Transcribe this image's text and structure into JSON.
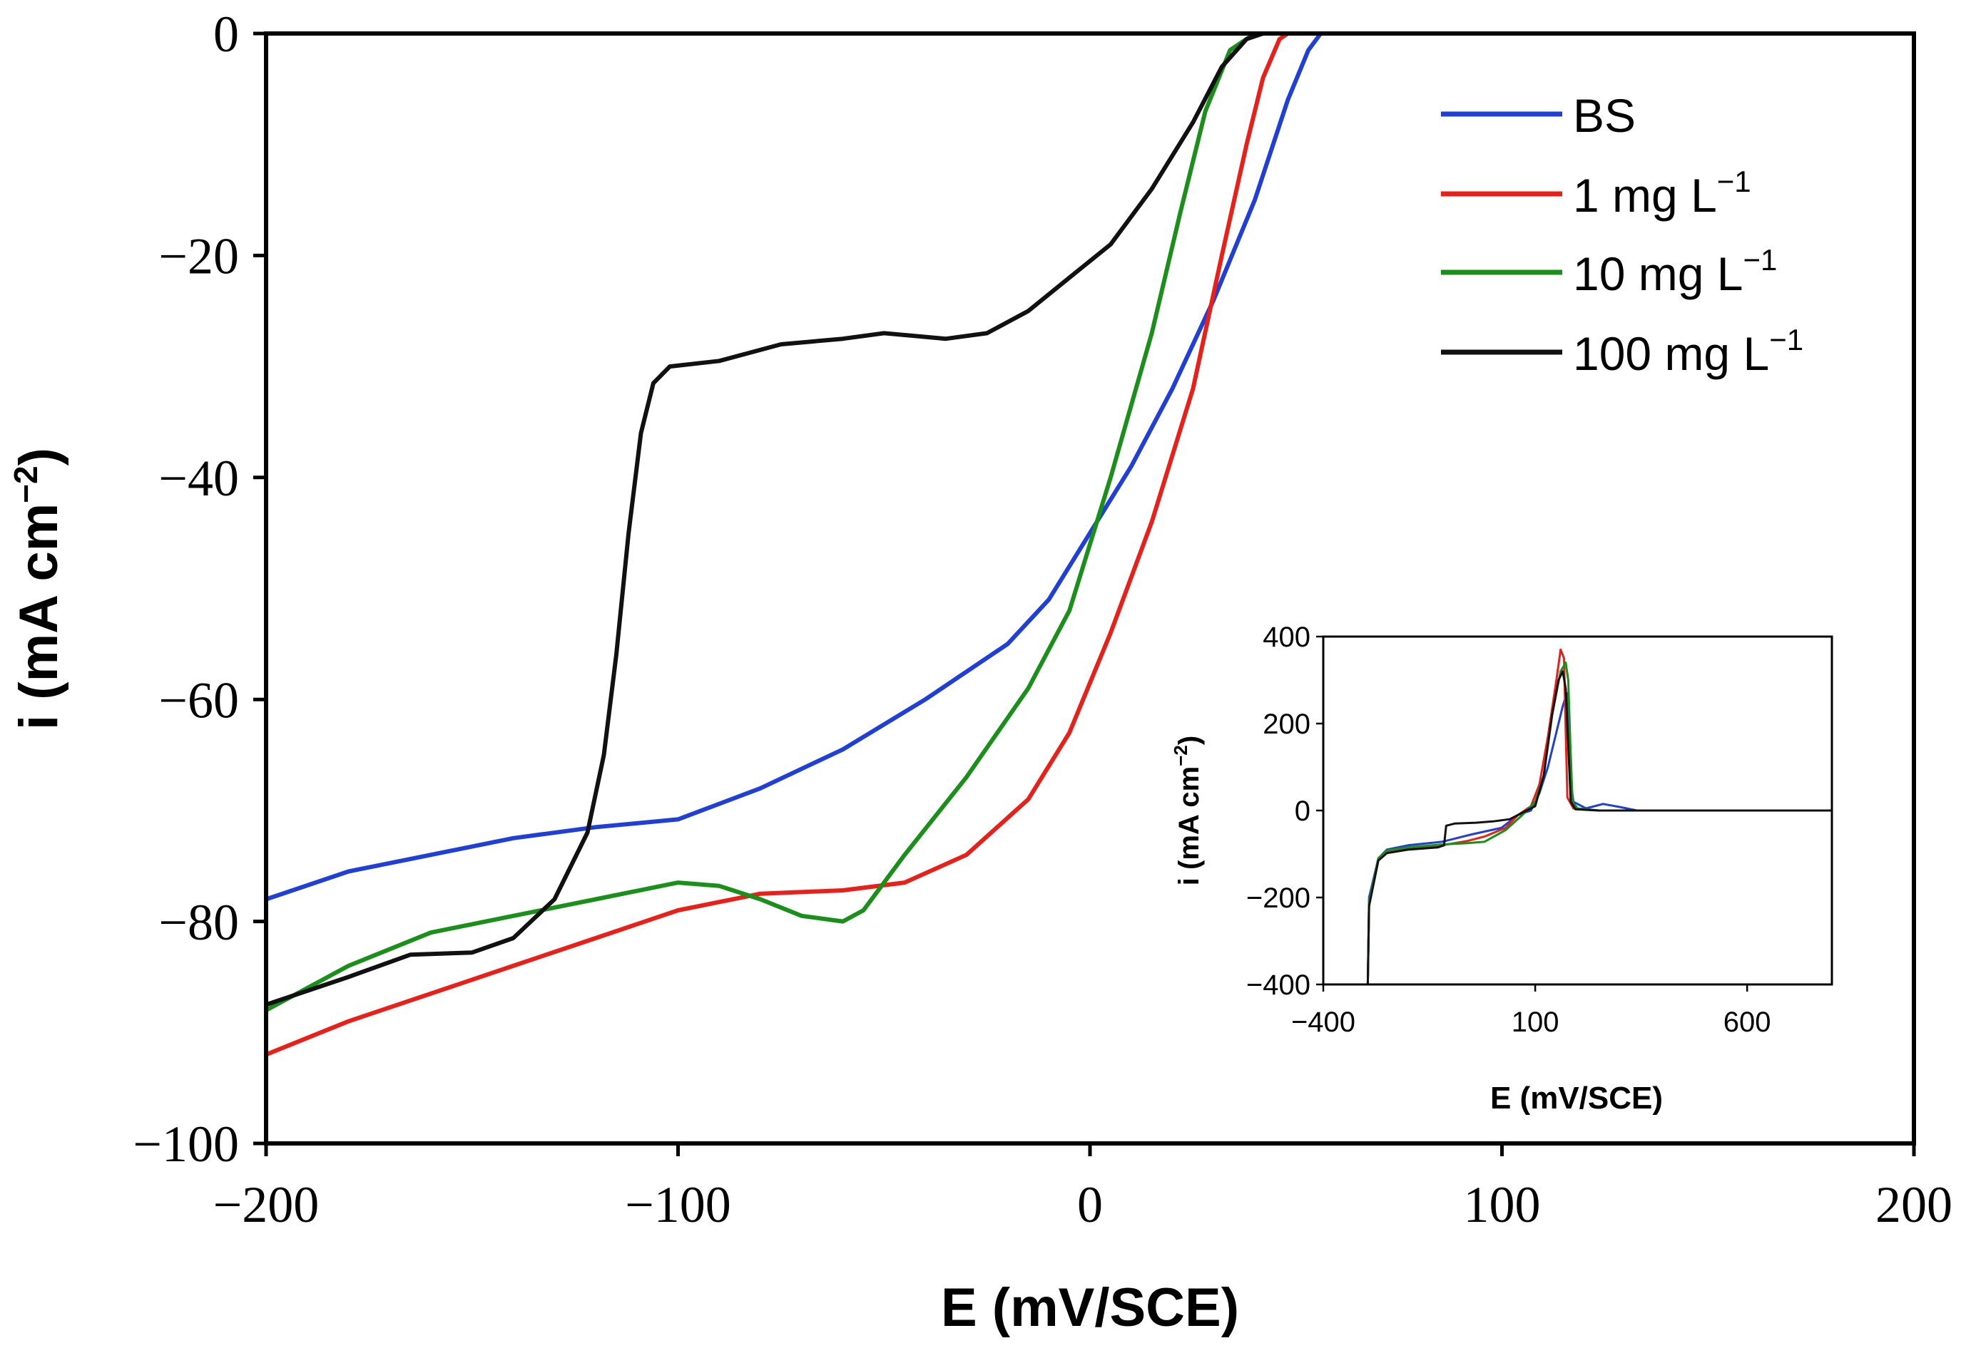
{
  "chart_data": [
    {
      "id": "main",
      "type": "line",
      "title": "",
      "xlabel": "E (mV/SCE)",
      "ylabel_prefix": "i (mA cm",
      "ylabel_sup": "−2",
      "ylabel_suffix": ")",
      "xlim": [
        -200,
        200
      ],
      "ylim": [
        -100,
        0
      ],
      "xticks": [
        -200,
        -100,
        0,
        100,
        200
      ],
      "xtick_labels": [
        "−200",
        "−100",
        "0",
        "100",
        "200"
      ],
      "yticks": [
        0,
        -20,
        -40,
        -60,
        -80,
        -100
      ],
      "ytick_labels": [
        "0",
        "−20",
        "−40",
        "−60",
        "−80",
        "−100"
      ],
      "grid": false,
      "legend_position": "top-right",
      "series": [
        {
          "name": "BS",
          "color": "#1f3fd6",
          "points": [
            [
              -200,
              -78
            ],
            [
              -180,
              -75.5
            ],
            [
              -160,
              -74
            ],
            [
              -140,
              -72.5
            ],
            [
              -120,
              -71.5
            ],
            [
              -100,
              -70.8
            ],
            [
              -80,
              -68
            ],
            [
              -60,
              -64.5
            ],
            [
              -40,
              -60
            ],
            [
              -20,
              -55
            ],
            [
              -10,
              -51
            ],
            [
              0,
              -45
            ],
            [
              10,
              -39
            ],
            [
              20,
              -32
            ],
            [
              30,
              -24
            ],
            [
              40,
              -15
            ],
            [
              48,
              -6
            ],
            [
              53,
              -1.5
            ],
            [
              56,
              0
            ]
          ]
        },
        {
          "name": "1 mg L",
          "sup": "−1",
          "color": "#e8201a",
          "points": [
            [
              -200,
              -92
            ],
            [
              -180,
              -89
            ],
            [
              -160,
              -86.5
            ],
            [
              -140,
              -84
            ],
            [
              -120,
              -81.5
            ],
            [
              -100,
              -79
            ],
            [
              -80,
              -77.5
            ],
            [
              -60,
              -77.2
            ],
            [
              -45,
              -76.5
            ],
            [
              -30,
              -74
            ],
            [
              -15,
              -69
            ],
            [
              -5,
              -63
            ],
            [
              5,
              -54
            ],
            [
              15,
              -44
            ],
            [
              25,
              -32
            ],
            [
              32,
              -20
            ],
            [
              38,
              -10
            ],
            [
              42,
              -4
            ],
            [
              46,
              -0.5
            ],
            [
              48,
              0
            ]
          ]
        },
        {
          "name": "10 mg L",
          "sup": "−1",
          "color": "#1a8f1a",
          "points": [
            [
              -200,
              -88
            ],
            [
              -180,
              -84
            ],
            [
              -160,
              -81
            ],
            [
              -140,
              -79.5
            ],
            [
              -120,
              -78
            ],
            [
              -100,
              -76.5
            ],
            [
              -90,
              -76.8
            ],
            [
              -80,
              -78
            ],
            [
              -70,
              -79.5
            ],
            [
              -60,
              -80
            ],
            [
              -55,
              -79
            ],
            [
              -45,
              -74
            ],
            [
              -30,
              -67
            ],
            [
              -15,
              -59
            ],
            [
              -5,
              -52
            ],
            [
              5,
              -40
            ],
            [
              15,
              -27
            ],
            [
              22,
              -16
            ],
            [
              28,
              -7
            ],
            [
              34,
              -1.5
            ],
            [
              40,
              0
            ]
          ]
        },
        {
          "name": "100 mg L",
          "sup": "−1",
          "color": "#111111",
          "points": [
            [
              -200,
              -87.5
            ],
            [
              -180,
              -85
            ],
            [
              -165,
              -83
            ],
            [
              -150,
              -82.8
            ],
            [
              -140,
              -81.5
            ],
            [
              -130,
              -78
            ],
            [
              -122,
              -72
            ],
            [
              -118,
              -65
            ],
            [
              -115,
              -56
            ],
            [
              -112,
              -45
            ],
            [
              -109,
              -36
            ],
            [
              -106,
              -31.5
            ],
            [
              -102,
              -30
            ],
            [
              -90,
              -29.5
            ],
            [
              -75,
              -28
            ],
            [
              -60,
              -27.5
            ],
            [
              -50,
              -27
            ],
            [
              -35,
              -27.5
            ],
            [
              -25,
              -27
            ],
            [
              -15,
              -25
            ],
            [
              -5,
              -22
            ],
            [
              5,
              -19
            ],
            [
              15,
              -14
            ],
            [
              25,
              -8
            ],
            [
              32,
              -3
            ],
            [
              38,
              -0.5
            ],
            [
              42,
              0
            ]
          ]
        }
      ]
    },
    {
      "id": "inset",
      "type": "line",
      "title": "",
      "xlabel": "E (mV/SCE)",
      "ylabel_prefix": "i (mA cm",
      "ylabel_sup": "−2",
      "ylabel_suffix": ")",
      "xlim": [
        -400,
        800
      ],
      "ylim": [
        -400,
        400
      ],
      "xticks": [
        -400,
        100,
        600
      ],
      "xtick_labels": [
        "−400",
        "100",
        "600"
      ],
      "yticks": [
        400,
        200,
        0,
        -200,
        -400
      ],
      "ytick_labels": [
        "400",
        "200",
        "0",
        "−200",
        "−400"
      ],
      "grid": false,
      "series": [
        {
          "name": "BS",
          "color": "#1f3fd6",
          "points": [
            [
              -295,
              -400
            ],
            [
              -292,
              -200
            ],
            [
              -270,
              -110
            ],
            [
              -250,
              -90
            ],
            [
              -200,
              -80
            ],
            [
              -120,
              -72
            ],
            [
              -50,
              -55
            ],
            [
              20,
              -40
            ],
            [
              60,
              -10
            ],
            [
              90,
              0
            ],
            [
              110,
              40
            ],
            [
              130,
              100
            ],
            [
              150,
              180
            ],
            [
              165,
              240
            ],
            [
              175,
              270
            ],
            [
              180,
              200
            ],
            [
              185,
              60
            ],
            [
              190,
              20
            ],
            [
              220,
              5
            ],
            [
              260,
              15
            ],
            [
              300,
              8
            ],
            [
              340,
              0
            ],
            [
              400,
              0
            ],
            [
              800,
              0
            ]
          ]
        },
        {
          "name": "1 mg L",
          "color": "#e8201a",
          "points": [
            [
              -295,
              -400
            ],
            [
              -292,
              -210
            ],
            [
              -270,
              -110
            ],
            [
              -250,
              -95
            ],
            [
              -200,
              -88
            ],
            [
              -120,
              -80
            ],
            [
              -60,
              -70
            ],
            [
              -20,
              -60
            ],
            [
              30,
              -40
            ],
            [
              60,
              -10
            ],
            [
              90,
              10
            ],
            [
              110,
              60
            ],
            [
              130,
              170
            ],
            [
              150,
              300
            ],
            [
              160,
              370
            ],
            [
              168,
              350
            ],
            [
              172,
              180
            ],
            [
              176,
              30
            ],
            [
              190,
              5
            ],
            [
              250,
              0
            ],
            [
              800,
              0
            ]
          ]
        },
        {
          "name": "10 mg L",
          "color": "#1a8f1a",
          "points": [
            [
              -295,
              -400
            ],
            [
              -292,
              -210
            ],
            [
              -270,
              -110
            ],
            [
              -250,
              -92
            ],
            [
              -200,
              -85
            ],
            [
              -120,
              -78
            ],
            [
              -60,
              -75
            ],
            [
              -20,
              -72
            ],
            [
              30,
              -45
            ],
            [
              70,
              -10
            ],
            [
              100,
              20
            ],
            [
              120,
              80
            ],
            [
              140,
              220
            ],
            [
              160,
              320
            ],
            [
              172,
              340
            ],
            [
              178,
              300
            ],
            [
              183,
              150
            ],
            [
              188,
              20
            ],
            [
              200,
              5
            ],
            [
              250,
              0
            ],
            [
              800,
              0
            ]
          ]
        },
        {
          "name": "100 mg L",
          "color": "#111111",
          "points": [
            [
              -295,
              -400
            ],
            [
              -292,
              -220
            ],
            [
              -270,
              -115
            ],
            [
              -250,
              -98
            ],
            [
              -200,
              -90
            ],
            [
              -130,
              -85
            ],
            [
              -115,
              -80
            ],
            [
              -110,
              -35
            ],
            [
              -90,
              -30
            ],
            [
              -40,
              -28
            ],
            [
              0,
              -25
            ],
            [
              40,
              -20
            ],
            [
              70,
              -5
            ],
            [
              100,
              10
            ],
            [
              120,
              80
            ],
            [
              140,
              220
            ],
            [
              155,
              300
            ],
            [
              165,
              320
            ],
            [
              172,
              280
            ],
            [
              178,
              150
            ],
            [
              184,
              20
            ],
            [
              195,
              3
            ],
            [
              250,
              0
            ],
            [
              800,
              0
            ]
          ]
        }
      ]
    }
  ]
}
